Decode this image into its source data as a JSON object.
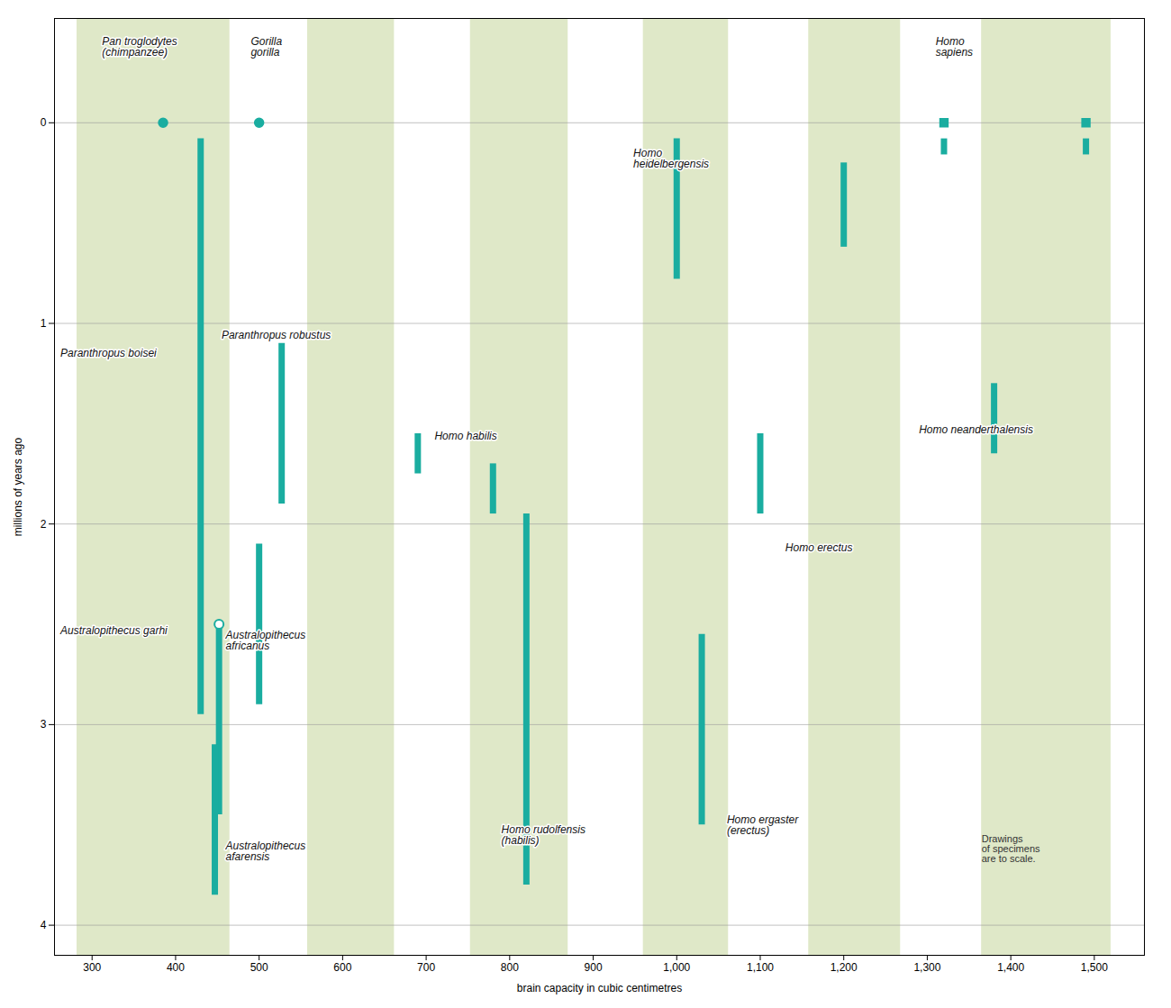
{
  "chart_data": {
    "type": "range",
    "xlabel": "brain capacity in cubic centimetres",
    "ylabel": "millions of years ago",
    "xlim": [
      255,
      1560
    ],
    "ylim": [
      4.15,
      -0.52
    ],
    "xticks": [
      300,
      400,
      500,
      600,
      700,
      800,
      900,
      {
        "value": 1000,
        "label": "1,000"
      },
      {
        "value": 1100,
        "label": "1,100"
      },
      {
        "value": 1200,
        "label": "1,200"
      },
      {
        "value": 1300,
        "label": "1,300"
      },
      {
        "value": 1400,
        "label": "1,400"
      },
      {
        "value": 1500,
        "label": "1,500"
      }
    ],
    "yticks": [
      0,
      1,
      2,
      3,
      4
    ],
    "grid": true,
    "color": "#1aada0",
    "bands": {
      "color": "#dfe8c8",
      "ranges": [
        [
          282,
          465
        ],
        [
          558,
          662
        ],
        [
          753,
          870
        ],
        [
          960,
          1062
        ],
        [
          1158,
          1268
        ],
        [
          1365,
          1520
        ]
      ]
    },
    "ranges": [
      {
        "x": 430,
        "from": 0.08,
        "to": 2.95
      },
      {
        "x": 527,
        "from": 1.1,
        "to": 1.9
      },
      {
        "x": 690,
        "from": 1.55,
        "to": 1.75
      },
      {
        "x": 780,
        "from": 1.7,
        "to": 1.95
      },
      {
        "x": 452,
        "from": 2.5,
        "to": 3.45
      },
      {
        "x": 500,
        "from": 2.1,
        "to": 2.9
      },
      {
        "x": 447,
        "from": 3.1,
        "to": 3.85
      },
      {
        "x": 820,
        "from": 1.95,
        "to": 3.8
      },
      {
        "x": 1000,
        "from": 0.08,
        "to": 0.78
      },
      {
        "x": 1200,
        "from": 0.2,
        "to": 0.62
      },
      {
        "x": 1100,
        "from": 1.55,
        "to": 1.95
      },
      {
        "x": 1030,
        "from": 2.55,
        "to": 3.5
      },
      {
        "x": 1380,
        "from": 1.3,
        "to": 1.65
      },
      {
        "x": 1320,
        "from": 0.08,
        "to": 0.16
      },
      {
        "x": 1490,
        "from": 0.08,
        "to": 0.16
      }
    ],
    "points": [
      {
        "marker": "circle",
        "values": [
          {
            "x": 385,
            "y": 0.0
          },
          {
            "x": 500,
            "y": 0.0
          }
        ]
      },
      {
        "marker": "square",
        "values": [
          {
            "x": 1320,
            "y": 0.0
          },
          {
            "x": 1490,
            "y": 0.0
          }
        ]
      },
      {
        "marker": "open_circle",
        "values": [
          {
            "x": 452,
            "y": 2.5
          }
        ]
      }
    ],
    "annotations": [
      {
        "text": "Pan troglodytes\n(chimpanzee)",
        "x": 312,
        "y": -0.38
      },
      {
        "text": "Gorilla\ngorilla",
        "x": 490,
        "y": -0.38
      },
      {
        "text": "Homo\nsapiens",
        "x": 1310,
        "y": -0.38
      },
      {
        "text": "Paranthropus boisei",
        "x": 262,
        "y": 1.15
      },
      {
        "text": "Paranthropus robustus",
        "x": 455,
        "y": 1.06
      },
      {
        "text": "Homo habilis",
        "x": 710,
        "y": 1.56
      },
      {
        "text": "Australopithecus garhi",
        "x": 262,
        "y": 2.53
      },
      {
        "text": "Australopithecus\nafricanus",
        "x": 460,
        "y": 2.58
      },
      {
        "text": "Australopithecus\nafarensis",
        "x": 460,
        "y": 3.63
      },
      {
        "text": "Homo rudolfensis\n(habilis)",
        "x": 790,
        "y": 3.55
      },
      {
        "text": "Homo\nheidelbergensis",
        "x": 948,
        "y": 0.18
      },
      {
        "text": "Homo erectus",
        "x": 1130,
        "y": 2.12
      },
      {
        "text": "Homo ergaster\n(erectus)",
        "x": 1060,
        "y": 3.5
      },
      {
        "text": "Homo neanderthalensis",
        "x": 1290,
        "y": 1.53
      }
    ],
    "footnote": {
      "text": "Drawings\nof specimens\nare to scale.",
      "x": 1365,
      "y": 3.55
    }
  }
}
